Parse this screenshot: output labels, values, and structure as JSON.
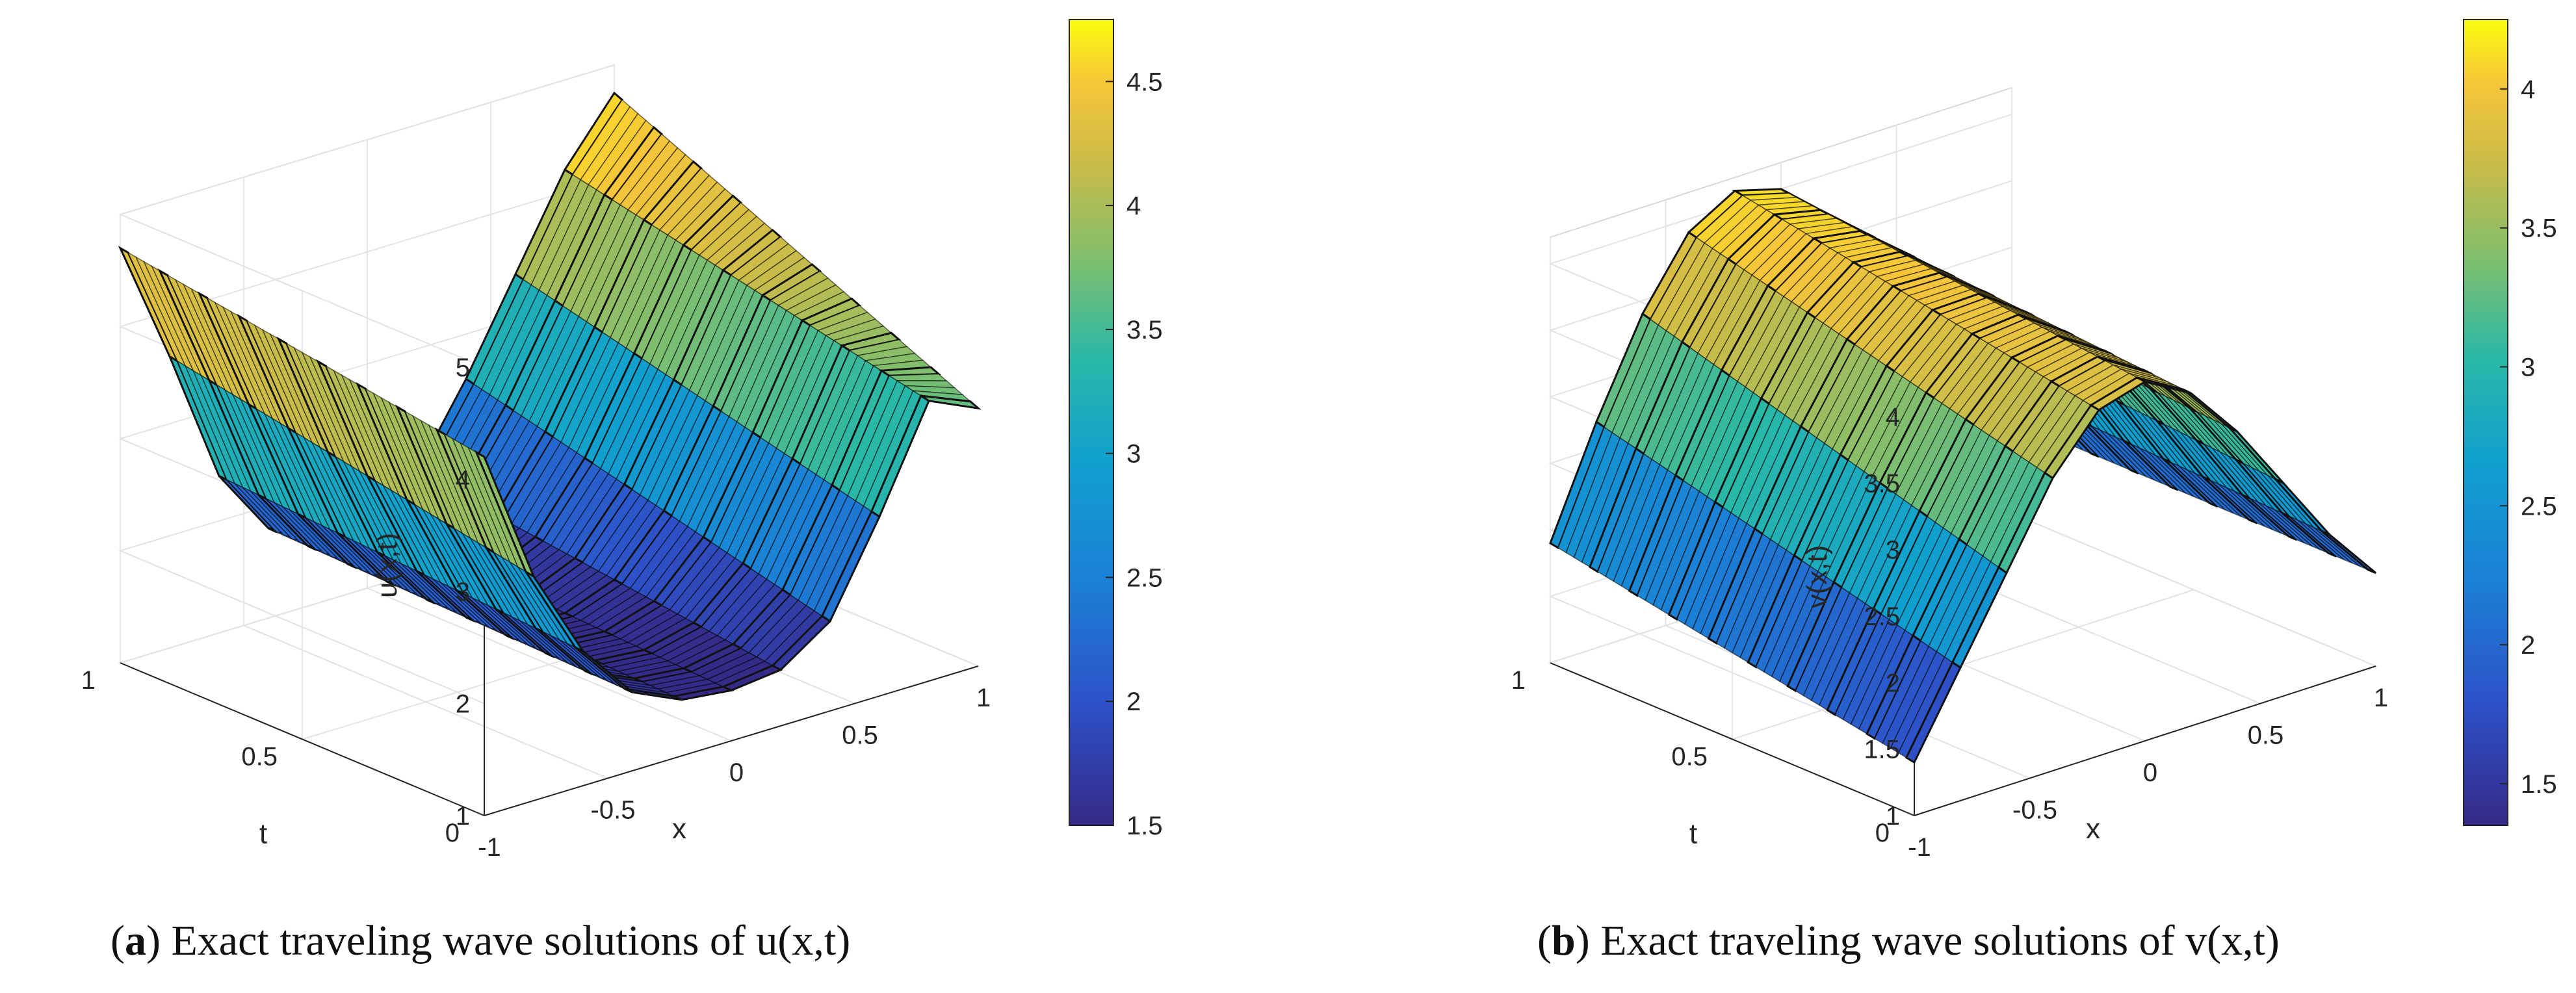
{
  "chart_data": [
    {
      "type": "surface3d",
      "panel": "a",
      "zlabel": "u(x,t)",
      "xlabel": "x",
      "ylabel": "t",
      "xlim": [
        -1,
        1
      ],
      "ylim": [
        0,
        1
      ],
      "zlim": [
        1,
        5
      ],
      "x_ticks": [
        "-1",
        "-0.5",
        "0",
        "0.5",
        "1"
      ],
      "t_ticks": [
        "0",
        "0.5",
        "1"
      ],
      "z_ticks": [
        "1",
        "2",
        "3",
        "4",
        "5"
      ],
      "colorbar": {
        "range": [
          1.5,
          4.75
        ],
        "ticks": [
          "1.5",
          "2",
          "2.5",
          "3",
          "3.5",
          "4",
          "4.5"
        ]
      },
      "x": [
        -1,
        -0.8,
        -0.6,
        -0.4,
        -0.2,
        0,
        0.2,
        0.4,
        0.6,
        0.8,
        1
      ],
      "profile_at_t0": [
        4.2,
        3.0,
        2.2,
        1.7,
        1.5,
        1.45,
        1.5,
        1.8,
        2.6,
        3.5,
        3.3
      ],
      "profile_at_t1": [
        4.7,
        3.6,
        2.4,
        1.8,
        1.6,
        1.6,
        1.9,
        2.6,
        3.4,
        4.2,
        4.75
      ],
      "caption": {
        "label": "a",
        "text": " Exact traveling wave solutions of u(x,t)"
      }
    },
    {
      "type": "surface3d",
      "panel": "b",
      "zlabel": "v(x,t)",
      "xlabel": "x",
      "ylabel": "t",
      "xlim": [
        -1,
        1
      ],
      "ylim": [
        0,
        1
      ],
      "zlim": [
        1,
        4.2
      ],
      "x_ticks": [
        "-1",
        "-0.5",
        "0",
        "0.5",
        "1"
      ],
      "t_ticks": [
        "0",
        "0.5",
        "1"
      ],
      "z_ticks": [
        "1",
        "1.5",
        "2",
        "2.5",
        "3",
        "3.5",
        "4"
      ],
      "colorbar": {
        "range": [
          1.35,
          4.25
        ],
        "ticks": [
          "1.5",
          "2",
          "2.5",
          "3",
          "3.5",
          "4"
        ]
      },
      "x": [
        -1,
        -0.8,
        -0.6,
        -0.4,
        -0.2,
        0,
        0.2,
        0.4,
        0.6,
        0.8,
        1
      ],
      "profile_at_t0": [
        1.4,
        2.0,
        2.6,
        3.2,
        3.6,
        3.7,
        3.5,
        3.1,
        2.6,
        2.1,
        1.7
      ],
      "profile_at_t1": [
        1.9,
        2.7,
        3.4,
        3.9,
        4.1,
        4.0,
        3.7,
        3.3,
        2.8,
        2.2,
        1.7
      ],
      "caption": {
        "label": "b",
        "text": " Exact traveling wave solutions of v(x,t)"
      }
    }
  ]
}
